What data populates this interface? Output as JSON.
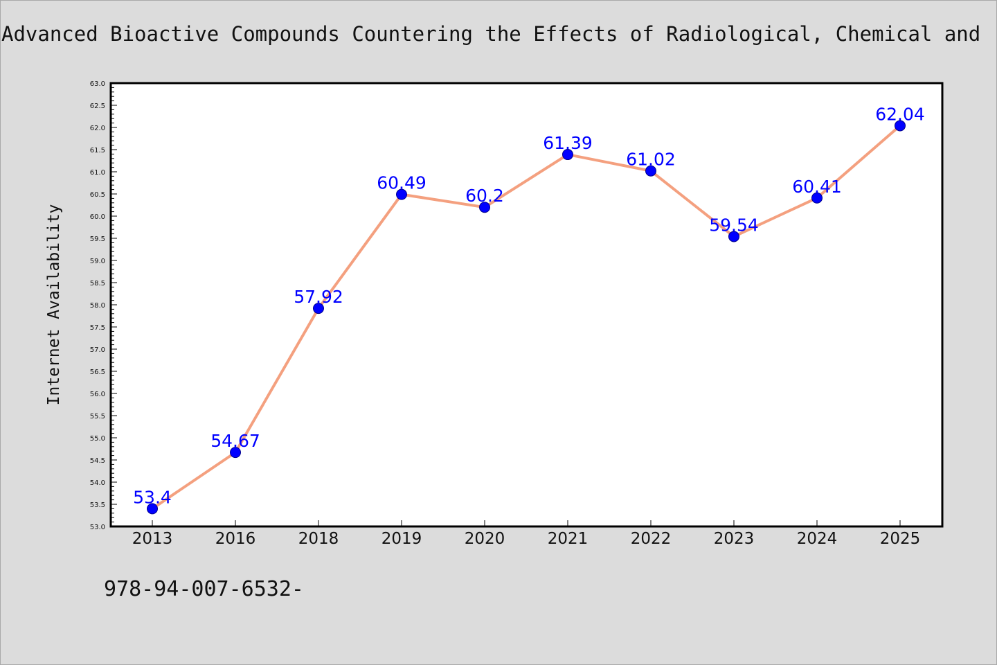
{
  "page": {
    "title": "Advanced Bioactive Compounds Countering the Effects of Radiological, Chemical and",
    "footer": "978-94-007-6532-"
  },
  "colors": {
    "background": "#dcdcdc",
    "plot_background": "#ffffff",
    "line": "#f4a07f",
    "marker": "#0000ff",
    "data_label": "#0000ff"
  },
  "chart_data": {
    "type": "line",
    "title": "Advanced Bioactive Compounds Countering the Effects of Radiological, Chemical and",
    "xlabel": "",
    "ylabel": "Internet Availability",
    "categories": [
      "2013",
      "2016",
      "2018",
      "2019",
      "2020",
      "2021",
      "2022",
      "2023",
      "2024",
      "2025"
    ],
    "series": [
      {
        "values": [
          53.4,
          54.67,
          57.92,
          60.49,
          60.2,
          61.39,
          61.02,
          59.54,
          60.41,
          62.04
        ],
        "labels": [
          "53.4",
          "54.67",
          "57.92",
          "60.49",
          "60.2",
          "61.39",
          "61.02",
          "59.54",
          "60.41",
          "62.04"
        ]
      }
    ],
    "ylim": [
      53.0,
      63.0
    ],
    "yticks": [
      "53.0",
      "53.5",
      "54.0",
      "54.5",
      "55.0",
      "55.5",
      "56.0",
      "56.5",
      "57.0",
      "57.5",
      "58.0",
      "58.5",
      "59.0",
      "59.5",
      "60.0",
      "60.5",
      "61.0",
      "61.5",
      "62.0",
      "62.5",
      "63.0"
    ],
    "grid": false,
    "legend": "none"
  }
}
